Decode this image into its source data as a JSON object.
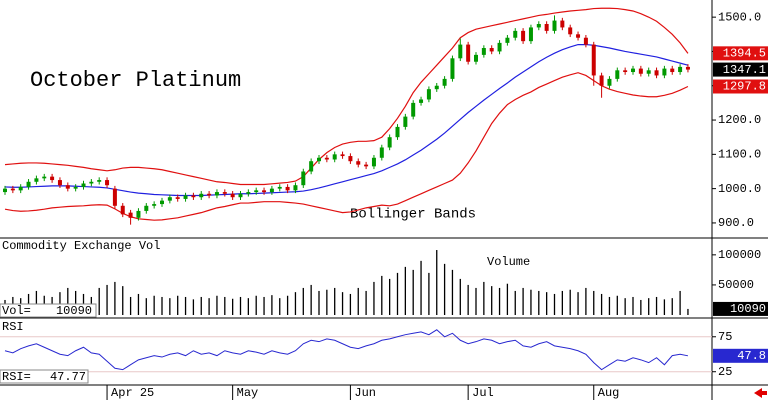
{
  "chart_data": [
    {
      "type": "candlestick",
      "title": "October Platinum",
      "annotation": "Bollinger Bands",
      "categories": [
        null,
        null,
        null,
        null,
        null,
        null,
        null,
        null,
        null,
        null,
        null,
        null,
        null,
        "Apr 25",
        null,
        null,
        null,
        null,
        null,
        null,
        null,
        null,
        null,
        null,
        null,
        null,
        null,
        null,
        null,
        "May",
        null,
        null,
        null,
        null,
        null,
        null,
        null,
        null,
        null,
        null,
        null,
        null,
        null,
        null,
        "Jun",
        null,
        null,
        null,
        null,
        null,
        null,
        null,
        null,
        null,
        null,
        null,
        null,
        null,
        null,
        "Jul",
        null,
        null,
        null,
        null,
        null,
        null,
        null,
        null,
        null,
        null,
        null,
        null,
        null,
        null,
        null,
        "Aug",
        null,
        null,
        null,
        null,
        null,
        null,
        null,
        null,
        null,
        null,
        null,
        null
      ],
      "open": [
        990,
        1000,
        995,
        1005,
        1020,
        1030,
        1035,
        1025,
        1010,
        1000,
        1005,
        1015,
        1020,
        1025,
        1000,
        950,
        930,
        915,
        935,
        950,
        955,
        965,
        975,
        970,
        980,
        975,
        985,
        980,
        990,
        985,
        975,
        985,
        990,
        995,
        990,
        1000,
        1005,
        995,
        1010,
        1050,
        1080,
        1090,
        1085,
        1100,
        1095,
        1080,
        1070,
        1065,
        1090,
        1120,
        1150,
        1180,
        1210,
        1250,
        1260,
        1290,
        1300,
        1320,
        1380,
        1420,
        1370,
        1390,
        1410,
        1400,
        1425,
        1440,
        1460,
        1430,
        1470,
        1480,
        1460,
        1490,
        1470,
        1450,
        1440,
        1420,
        1330,
        1300,
        1320,
        1345,
        1340,
        1350,
        1335,
        1345,
        1330,
        1350,
        1340,
        1355
      ],
      "high": [
        1008,
        1008,
        1013,
        1028,
        1038,
        1043,
        1043,
        1033,
        1018,
        1013,
        1023,
        1028,
        1033,
        1033,
        1008,
        958,
        938,
        943,
        958,
        963,
        973,
        983,
        983,
        988,
        988,
        993,
        993,
        998,
        998,
        993,
        993,
        998,
        1003,
        1003,
        1008,
        1013,
        1013,
        1018,
        1058,
        1088,
        1098,
        1098,
        1108,
        1108,
        1103,
        1088,
        1078,
        1098,
        1128,
        1158,
        1188,
        1218,
        1258,
        1268,
        1298,
        1308,
        1328,
        1388,
        1438,
        1428,
        1398,
        1418,
        1418,
        1433,
        1448,
        1468,
        1468,
        1478,
        1488,
        1488,
        1505,
        1498,
        1478,
        1458,
        1448,
        1428,
        1338,
        1328,
        1353,
        1353,
        1358,
        1358,
        1353,
        1353,
        1358,
        1358,
        1363,
        1363
      ],
      "low": [
        982,
        987,
        987,
        997,
        1012,
        1022,
        1017,
        1002,
        992,
        992,
        997,
        1007,
        1012,
        1002,
        942,
        917,
        895,
        907,
        927,
        942,
        947,
        957,
        962,
        962,
        967,
        967,
        972,
        972,
        977,
        967,
        967,
        977,
        982,
        982,
        982,
        992,
        987,
        987,
        1002,
        1042,
        1072,
        1077,
        1077,
        1087,
        1072,
        1062,
        1057,
        1057,
        1082,
        1112,
        1142,
        1172,
        1202,
        1242,
        1252,
        1282,
        1292,
        1312,
        1372,
        1362,
        1362,
        1382,
        1392,
        1392,
        1417,
        1432,
        1422,
        1422,
        1462,
        1452,
        1452,
        1462,
        1442,
        1432,
        1412,
        1300,
        1265,
        1292,
        1312,
        1332,
        1332,
        1327,
        1327,
        1322,
        1322,
        1332,
        1332,
        1339
      ],
      "close": [
        1000,
        995,
        1005,
        1020,
        1030,
        1035,
        1025,
        1010,
        1000,
        1005,
        1015,
        1020,
        1025,
        1010,
        950,
        925,
        915,
        935,
        950,
        955,
        965,
        975,
        970,
        980,
        975,
        985,
        980,
        990,
        985,
        975,
        985,
        990,
        995,
        990,
        1000,
        1005,
        995,
        1010,
        1050,
        1080,
        1090,
        1085,
        1100,
        1095,
        1080,
        1070,
        1065,
        1090,
        1120,
        1150,
        1180,
        1210,
        1250,
        1260,
        1290,
        1300,
        1320,
        1380,
        1420,
        1370,
        1390,
        1410,
        1400,
        1425,
        1440,
        1460,
        1430,
        1470,
        1480,
        1460,
        1490,
        1470,
        1450,
        1440,
        1420,
        1330,
        1300,
        1320,
        1345,
        1340,
        1350,
        1335,
        1345,
        1330,
        1350,
        1340,
        1355,
        1347.1
      ],
      "up_color": "#009900",
      "down_color": "#cc0000",
      "bands": {
        "upper": [
          1070,
          1072,
          1074,
          1075,
          1075,
          1074,
          1072,
          1070,
          1068,
          1065,
          1062,
          1058,
          1055,
          1052,
          1055,
          1060,
          1062,
          1062,
          1060,
          1058,
          1055,
          1050,
          1045,
          1040,
          1035,
          1030,
          1025,
          1020,
          1018,
          1015,
          1012,
          1012,
          1012,
          1012,
          1014,
          1016,
          1018,
          1022,
          1035,
          1060,
          1085,
          1105,
          1120,
          1130,
          1135,
          1138,
          1138,
          1140,
          1150,
          1175,
          1205,
          1240,
          1280,
          1310,
          1335,
          1360,
          1385,
          1410,
          1440,
          1455,
          1465,
          1470,
          1475,
          1480,
          1485,
          1490,
          1495,
          1500,
          1505,
          1508,
          1512,
          1515,
          1518,
          1520,
          1522,
          1525,
          1526,
          1526,
          1525,
          1522,
          1518,
          1510,
          1500,
          1488,
          1470,
          1450,
          1425,
          1394.5
        ],
        "middle": [
          1005,
          1004,
          1004,
          1005,
          1006,
          1007,
          1008,
          1008,
          1008,
          1007,
          1006,
          1005,
          1004,
          1002,
          998,
          994,
          990,
          987,
          985,
          983,
          982,
          981,
          980,
          980,
          980,
          980,
          981,
          982,
          983,
          984,
          985,
          985,
          986,
          987,
          988,
          989,
          990,
          991,
          993,
          997,
          1002,
          1008,
          1014,
          1020,
          1026,
          1032,
          1038,
          1044,
          1052,
          1062,
          1072,
          1084,
          1098,
          1112,
          1128,
          1144,
          1162,
          1182,
          1202,
          1222,
          1240,
          1258,
          1275,
          1292,
          1308,
          1325,
          1340,
          1355,
          1370,
          1383,
          1395,
          1405,
          1413,
          1420,
          1420,
          1418,
          1414,
          1410,
          1405,
          1400,
          1396,
          1392,
          1388,
          1384,
          1378,
          1372,
          1366,
          1360
        ],
        "lower": [
          940,
          936,
          934,
          935,
          937,
          940,
          944,
          946,
          948,
          949,
          950,
          952,
          953,
          952,
          941,
          928,
          918,
          912,
          910,
          908,
          909,
          912,
          915,
          920,
          925,
          930,
          937,
          944,
          948,
          953,
          958,
          958,
          960,
          962,
          962,
          962,
          960,
          958,
          955,
          950,
          945,
          940,
          935,
          930,
          932,
          938,
          944,
          948,
          952,
          950,
          955,
          965,
          975,
          985,
          995,
          1005,
          1015,
          1025,
          1045,
          1075,
          1110,
          1150,
          1190,
          1220,
          1245,
          1260,
          1272,
          1282,
          1295,
          1305,
          1315,
          1325,
          1332,
          1338,
          1330,
          1315,
          1300,
          1290,
          1283,
          1278,
          1273,
          1270,
          1268,
          1268,
          1272,
          1278,
          1287,
          1297.8
        ],
        "band_color": "#e01010",
        "middle_color": "#2020e0"
      },
      "ylim": [
        859,
        1550
      ],
      "yticks": [
        {
          "value": 900,
          "label": "900.0"
        },
        {
          "value": 1000,
          "label": "1000.0"
        },
        {
          "value": 1100,
          "label": "1100.0"
        },
        {
          "value": 1200,
          "label": "1200.0"
        },
        {
          "value": 1300,
          "label": "1300.0"
        },
        {
          "value": 1400,
          "label": "1400.0"
        },
        {
          "value": 1500,
          "label": "1500.0"
        }
      ]
    },
    {
      "type": "bar",
      "title": "Commodity Exchange Vol",
      "annotation": "Volume",
      "readout_label": "Vol=",
      "values": [
        25000,
        30000,
        28000,
        35000,
        40000,
        32000,
        30000,
        38000,
        45000,
        40000,
        35000,
        30000,
        45000,
        50000,
        55000,
        48000,
        30000,
        35000,
        28000,
        32000,
        30000,
        28000,
        32000,
        30000,
        26000,
        30000,
        28000,
        32000,
        30000,
        27000,
        30000,
        28000,
        32000,
        30000,
        33000,
        28000,
        32000,
        38000,
        45000,
        50000,
        40000,
        42000,
        45000,
        38000,
        35000,
        45000,
        40000,
        55000,
        65000,
        60000,
        70000,
        80000,
        75000,
        90000,
        70000,
        108000,
        85000,
        75000,
        60000,
        50000,
        45000,
        55000,
        48000,
        45000,
        52000,
        40000,
        45000,
        42000,
        40000,
        38000,
        35000,
        40000,
        42000,
        38000,
        45000,
        40000,
        35000,
        30000,
        32000,
        28000,
        30000,
        25000,
        28000,
        30000,
        26000,
        28000,
        40000,
        10090
      ],
      "color": "#000000",
      "ylim": [
        0,
        128000
      ],
      "yticks": [
        50000,
        100000
      ]
    },
    {
      "type": "line",
      "title": "RSI",
      "readout_label": "RSI=",
      "box_label": "47.8",
      "values": [
        55,
        52,
        58,
        62,
        65,
        60,
        55,
        50,
        48,
        55,
        60,
        52,
        50,
        40,
        30,
        28,
        35,
        42,
        45,
        48,
        46,
        50,
        52,
        48,
        55,
        50,
        52,
        48,
        55,
        52,
        50,
        55,
        53,
        50,
        55,
        52,
        50,
        55,
        65,
        70,
        68,
        72,
        70,
        65,
        60,
        58,
        62,
        65,
        70,
        72,
        75,
        78,
        80,
        82,
        78,
        85,
        75,
        80,
        70,
        65,
        68,
        72,
        70,
        65,
        68,
        70,
        62,
        60,
        65,
        68,
        62,
        60,
        58,
        55,
        50,
        38,
        28,
        35,
        42,
        40,
        45,
        42,
        38,
        45,
        35,
        48,
        50,
        47.77
      ],
      "color": "#2828d0",
      "ylim": [
        6,
        99
      ],
      "yticks": [
        25,
        75
      ]
    }
  ]
}
